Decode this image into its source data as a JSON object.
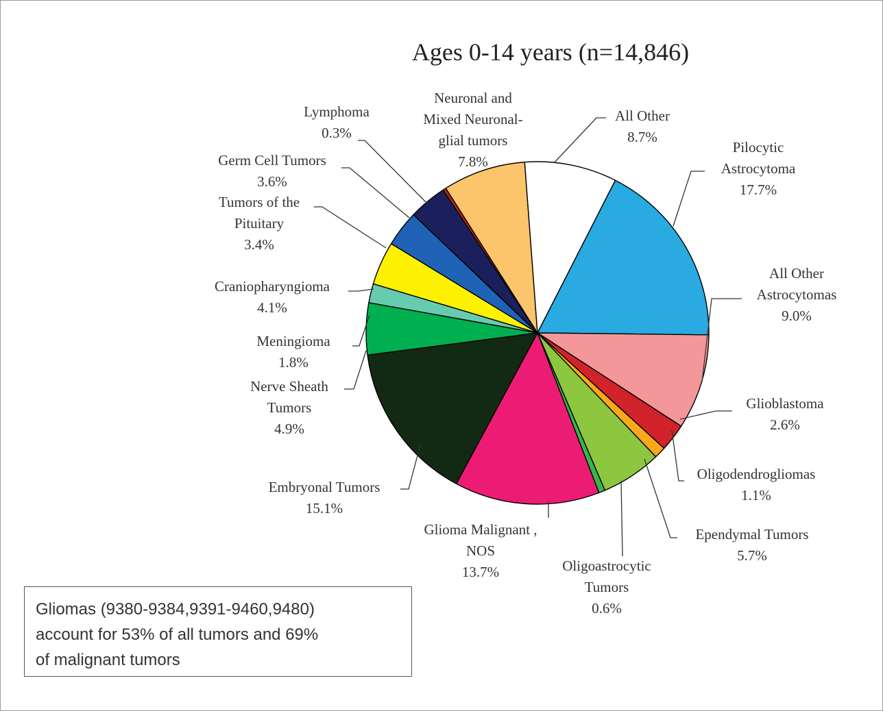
{
  "chart_data": {
    "type": "pie",
    "title": "Ages 0-14 years (n=14,846)",
    "slices": [
      {
        "key": "pilocytic",
        "value": 17.7,
        "color": "#29abe2",
        "label_lines": [
          "Pilocytic",
          "Astrocytoma",
          "17.7%"
        ]
      },
      {
        "key": "all_other_astro",
        "value": 9.0,
        "color": "#f3979b",
        "label_lines": [
          "All Other",
          "Astrocytomas",
          "9.0%"
        ]
      },
      {
        "key": "glioblastoma",
        "value": 2.6,
        "color": "#d1232a",
        "label_lines": [
          "Glioblastoma",
          "2.6%"
        ]
      },
      {
        "key": "oligodendrogliomas",
        "value": 1.1,
        "color": "#f7a81b",
        "label_lines": [
          "Oligodendrogliomas",
          "1.1%"
        ]
      },
      {
        "key": "ependymal",
        "value": 5.7,
        "color": "#8dc63f",
        "label_lines": [
          "Ependymal Tumors",
          "5.7%"
        ]
      },
      {
        "key": "oligoastrocytic",
        "value": 0.6,
        "color": "#39b54a",
        "label_lines": [
          "Oligoastrocytic",
          "Tumors",
          "0.6%"
        ]
      },
      {
        "key": "glioma_nos",
        "value": 13.7,
        "color": "#ec1c74",
        "label_lines": [
          "Glioma Malignant ,",
          "NOS",
          "13.7%"
        ]
      },
      {
        "key": "embryonal",
        "value": 15.1,
        "color": "#122a13",
        "label_lines": [
          "Embryonal Tumors",
          "15.1%"
        ]
      },
      {
        "key": "nerve_sheath",
        "value": 4.9,
        "color": "#00b050",
        "label_lines": [
          "Nerve Sheath",
          "Tumors",
          "4.9%"
        ]
      },
      {
        "key": "meningioma",
        "value": 1.8,
        "color": "#66ccb0",
        "label_lines": [
          "Meningioma",
          "1.8%"
        ]
      },
      {
        "key": "craniopharyngioma",
        "value": 4.1,
        "color": "#fff200",
        "label_lines": [
          "Craniopharyngioma",
          "4.1%"
        ]
      },
      {
        "key": "pituitary",
        "value": 3.4,
        "color": "#1f63b6",
        "label_lines": [
          "Tumors of the",
          "Pituitary",
          "3.4%"
        ]
      },
      {
        "key": "germ_cell",
        "value": 3.6,
        "color": "#1b1f5c",
        "label_lines": [
          "Germ Cell Tumors",
          "3.6%"
        ]
      },
      {
        "key": "lymphoma",
        "value": 0.3,
        "color": "#b22222",
        "label_lines": [
          "Lymphoma",
          "0.3%"
        ]
      },
      {
        "key": "neuronal",
        "value": 7.8,
        "color": "#fdc56b",
        "label_lines": [
          "Neuronal and",
          "Mixed Neuronal-",
          "glial tumors",
          "7.8%"
        ]
      },
      {
        "key": "all_other",
        "value": 8.7,
        "color": "#ffffff",
        "label_lines": [
          "All Other",
          "8.7%"
        ]
      }
    ]
  },
  "note": {
    "lines": [
      "Gliomas (9380-9384,9391-9460,9480)",
      "account for 53% of all tumors and 69%",
      "of malignant tumors"
    ]
  }
}
